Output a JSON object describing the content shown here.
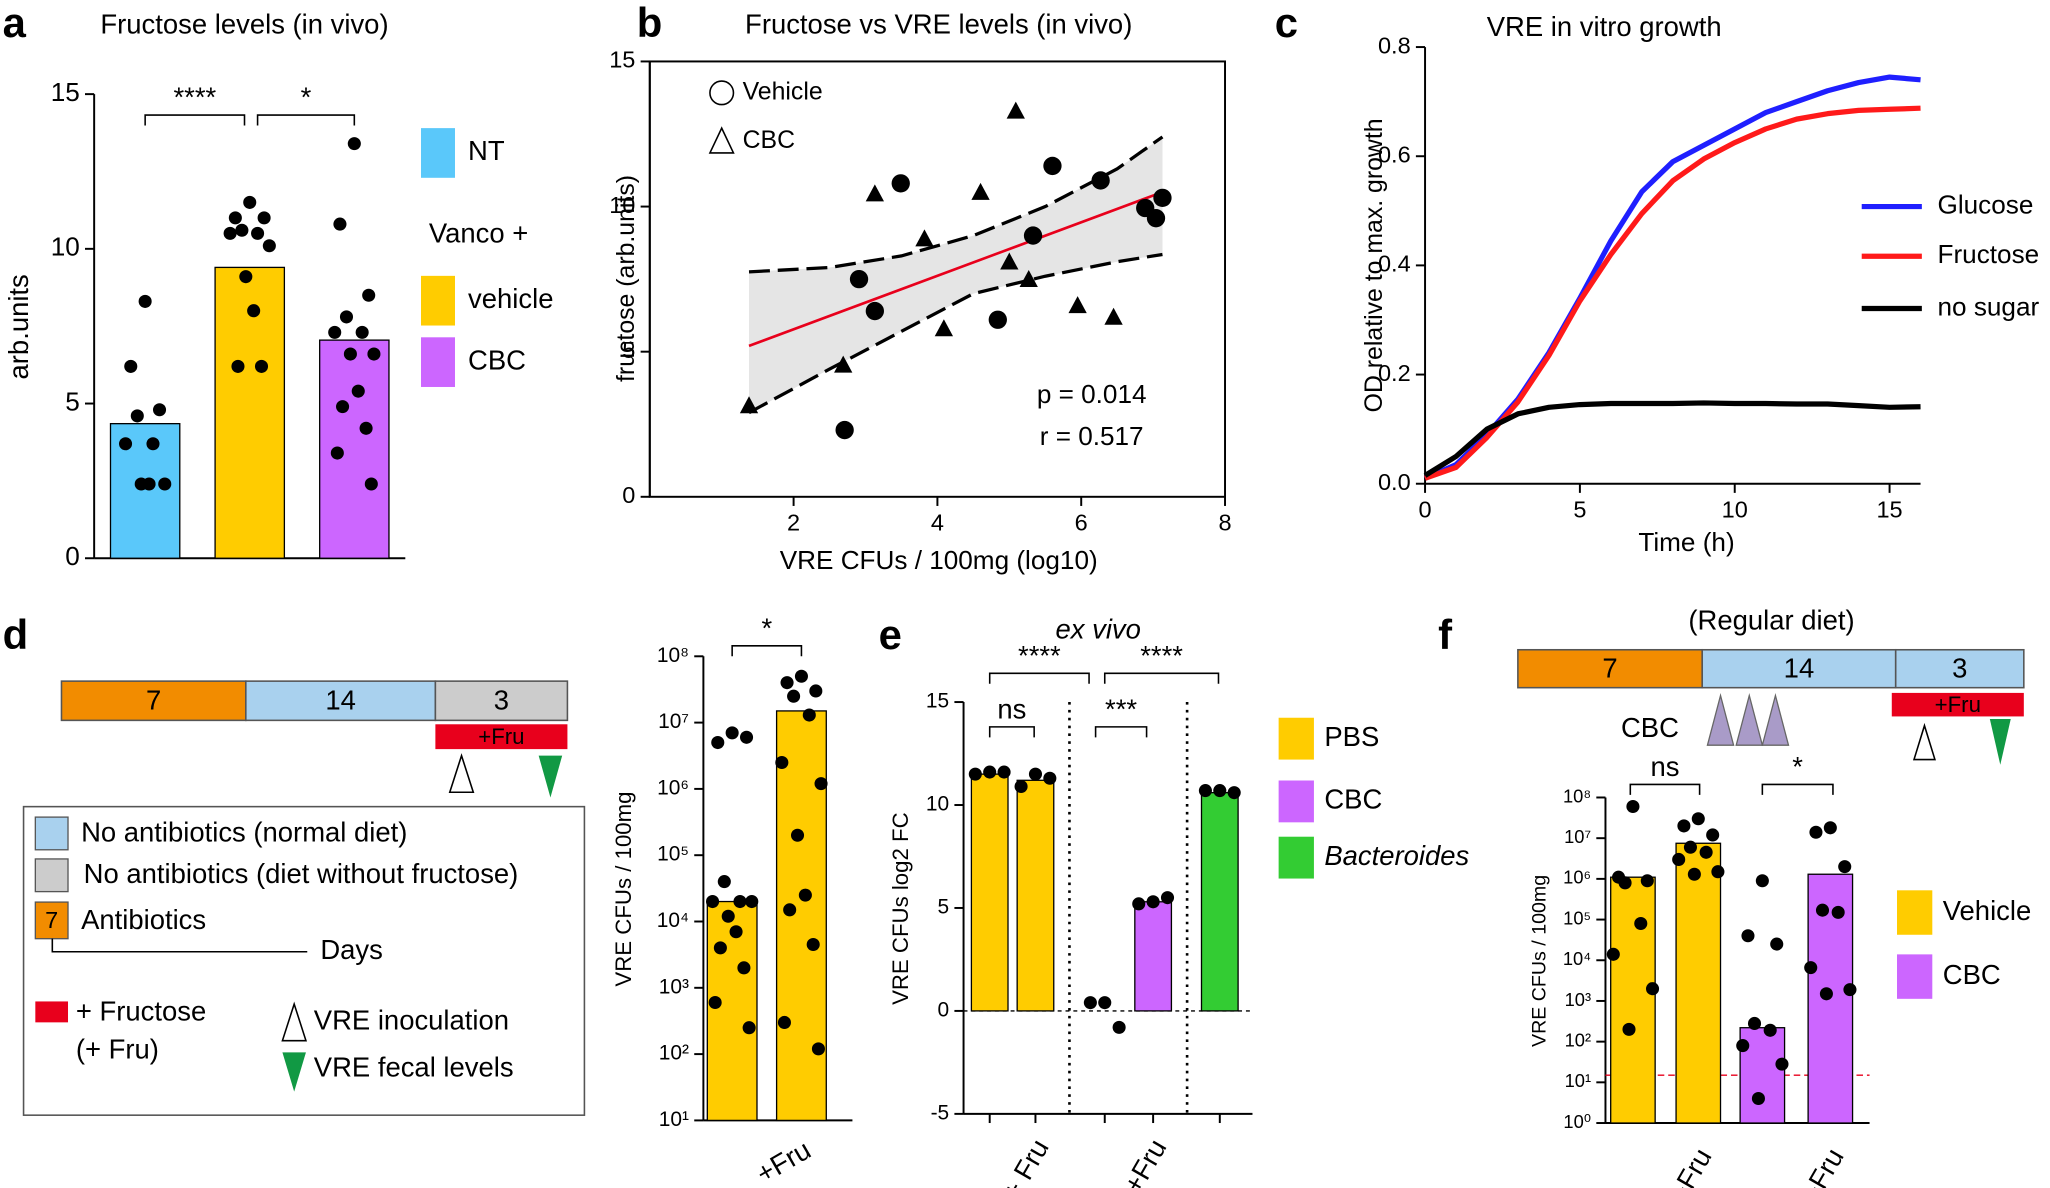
{
  "chart_data": [
    {
      "panel": "a",
      "type": "bar",
      "title": "Fructose levels (in vivo)",
      "ylabel": "arb.units",
      "ylim": [
        0,
        15
      ],
      "yticks": [
        0,
        5,
        10,
        15
      ],
      "categories": [
        null,
        null,
        null
      ],
      "values": [
        4.35,
        9.4,
        7.05
      ],
      "colors": [
        "#5ac8fa",
        "#ffcc00",
        "#cc66ff"
      ],
      "points": [
        [
          8.3,
          6.2,
          4.8,
          4.6,
          3.7,
          3.7,
          2.4,
          2.4,
          2.4
        ],
        [
          11.5,
          11.0,
          11.0,
          10.6,
          10.5,
          10.5,
          10.1,
          9.1,
          8.0,
          6.2,
          6.2
        ],
        [
          13.4,
          10.8,
          8.5,
          7.8,
          7.3,
          7.3,
          6.6,
          6.6,
          5.4,
          4.9,
          4.2,
          3.4,
          2.4
        ]
      ],
      "significance": [
        "****",
        "*"
      ],
      "legend_title": "Vanco +",
      "legend": [
        {
          "name": "NT",
          "color": "#5ac8fa"
        },
        {
          "name": "vehicle",
          "color": "#ffcc00"
        },
        {
          "name": "CBC",
          "color": "#cc66ff"
        }
      ]
    },
    {
      "panel": "b",
      "type": "scatter",
      "title": "Fructose vs VRE levels (in vivo)",
      "xlabel": "VRE CFUs / 100mg (log10)",
      "ylabel": "fructose (arb.units)",
      "xlim": [
        0,
        8
      ],
      "xticks": [
        2,
        4,
        6,
        8
      ],
      "ylim": [
        0,
        15
      ],
      "yticks": [
        0,
        5,
        10,
        15
      ],
      "series": [
        {
          "name": "Vehicle",
          "marker": "circle",
          "color": "#000000",
          "x": [
            2.91,
            3.13,
            3.49,
            2.71,
            4.84,
            5.6,
            5.33,
            6.27,
            6.89,
            7.04,
            7.13
          ],
          "values": [
            7.5,
            6.4,
            10.8,
            2.3,
            6.1,
            11.4,
            9.0,
            10.9,
            9.95,
            9.6,
            10.3
          ]
        },
        {
          "name": "CBC",
          "marker": "triangle",
          "color": "#000000",
          "x": [
            1.38,
            2.69,
            3.13,
            3.82,
            4.09,
            4.6,
            5.09,
            5.0,
            5.27,
            5.95,
            6.45
          ],
          "values": [
            3.15,
            4.55,
            10.45,
            8.9,
            5.8,
            10.5,
            13.3,
            8.1,
            7.5,
            6.6,
            6.2
          ]
        }
      ],
      "fit": {
        "color": "#e8001c",
        "x": [
          1.38,
          7.13
        ],
        "values": [
          5.2,
          10.5
        ]
      },
      "ci": {
        "x": [
          1.38,
          2.5,
          3.5,
          4.5,
          5.5,
          6.5,
          7.13
        ],
        "upper": [
          7.75,
          7.9,
          8.3,
          9.0,
          10.0,
          11.3,
          12.4
        ],
        "lower": [
          2.9,
          4.4,
          5.7,
          7.0,
          7.6,
          8.1,
          8.35
        ]
      },
      "annotations": [
        "p = 0.014",
        "r = 0.517"
      ]
    },
    {
      "panel": "c",
      "type": "line",
      "title": "VRE in vitro growth",
      "xlabel": "Time (h)",
      "ylabel": "OD relative to max. growth",
      "x": [
        0,
        1,
        2,
        3,
        4,
        5,
        6,
        7,
        8,
        9,
        10,
        11,
        12,
        13,
        14,
        15,
        16
      ],
      "xlim": [
        0,
        16
      ],
      "xticks": [
        0,
        5,
        10,
        15
      ],
      "ylim": [
        0,
        0.8
      ],
      "yticks": [
        {
          "value": 0,
          "label": "0.0"
        },
        0.2,
        0.4,
        0.6,
        0.8
      ],
      "series": [
        {
          "name": "Glucose",
          "color": "#1f1fff",
          "values": [
            0.01,
            0.035,
            0.09,
            0.155,
            0.24,
            0.34,
            0.445,
            0.535,
            0.59,
            0.62,
            0.65,
            0.68,
            0.7,
            0.72,
            0.735,
            0.745,
            0.74
          ]
        },
        {
          "name": "Fructose",
          "color": "#ff1a1a",
          "values": [
            0.01,
            0.03,
            0.085,
            0.15,
            0.235,
            0.335,
            0.42,
            0.495,
            0.555,
            0.595,
            0.625,
            0.65,
            0.668,
            0.678,
            0.684,
            0.686,
            0.688
          ]
        },
        {
          "name": "no sugar",
          "color": "#000000",
          "values": [
            0.015,
            0.05,
            0.1,
            0.128,
            0.14,
            0.145,
            0.147,
            0.147,
            0.147,
            0.148,
            0.147,
            0.147,
            0.146,
            0.146,
            0.143,
            0.14,
            0.141
          ]
        }
      ]
    },
    {
      "panel": "d",
      "type": "bar",
      "log_y": true,
      "ylabel": "VRE CFUs / 100mg",
      "ylim": [
        10,
        100000000
      ],
      "yticks": [
        {
          "value": 10,
          "label": "10¹"
        },
        {
          "value": 100,
          "label": "10²"
        },
        {
          "value": 1000,
          "label": "10³"
        },
        {
          "value": 10000,
          "label": "10⁴"
        },
        {
          "value": 100000,
          "label": "10⁵"
        },
        {
          "value": 1000000,
          "label": "10⁶"
        },
        {
          "value": 10000000,
          "label": "10⁷"
        },
        {
          "value": 100000000,
          "label": "10⁸"
        }
      ],
      "categories": [
        null,
        "+Fru"
      ],
      "values": [
        20000,
        15000000
      ],
      "colors": [
        "#ffcc00",
        "#ffcc00"
      ],
      "points": [
        [
          7000000,
          5000000,
          6000000,
          40000,
          20000,
          20000,
          20000,
          12000,
          7000,
          4000,
          2000,
          600,
          250
        ],
        [
          50000000,
          40000000,
          30000000,
          25000000,
          13000000,
          2500000,
          1200000,
          200000,
          25000,
          15000,
          4500,
          300,
          120
        ]
      ],
      "significance": [
        "*"
      ],
      "timeline": {
        "segments": [
          {
            "label": "7",
            "color": "#f28c00"
          },
          {
            "label": "14",
            "color": "#a9d1ee"
          },
          {
            "label": "3",
            "color": "#cccccc"
          }
        ],
        "fructose": {
          "label": "+Fru",
          "color": "#e8001c"
        }
      },
      "key": [
        "No antibiotics (normal diet)",
        "No antibiotics (diet without fructose)",
        "Antibiotics",
        "Days",
        "+ Fructose",
        "(+ Fru)",
        "VRE inoculation",
        "VRE fecal levels"
      ]
    },
    {
      "panel": "e",
      "type": "bar",
      "title": "ex vivo",
      "ylabel": "VRE CFUs log2 FC",
      "ylim": [
        -5,
        15
      ],
      "yticks": [
        -5,
        0,
        5,
        10,
        15
      ],
      "zero_line": true,
      "categories": [
        null,
        "+ Fru",
        null,
        "+Fru",
        null
      ],
      "values": [
        11.5,
        11.2,
        0,
        5.3,
        10.6
      ],
      "colors": [
        "#ffcc00",
        "#ffcc00",
        "#cc66ff",
        "#cc66ff",
        "#33cc33"
      ],
      "points": [
        [
          11.6,
          11.5,
          11.6
        ],
        [
          11.5,
          10.9,
          11.3
        ],
        [
          0.4,
          0.4,
          -0.8
        ],
        [
          5.3,
          5.2,
          5.5
        ],
        [
          10.7,
          10.7,
          10.6
        ]
      ],
      "significance": [
        "****",
        "****",
        "ns",
        "***"
      ],
      "legend": [
        {
          "name": "PBS",
          "color": "#ffcc00"
        },
        {
          "name": "CBC",
          "color": "#cc66ff"
        },
        {
          "name": "Bacteroides",
          "color": "#33cc33",
          "italic": true
        }
      ]
    },
    {
      "panel": "f",
      "type": "bar",
      "log_y": true,
      "ylabel": "VRE CFUs / 100mg",
      "ylim": [
        1,
        100000000
      ],
      "yticks": [
        {
          "value": 1,
          "label": "10⁰"
        },
        {
          "value": 10,
          "label": "10¹"
        },
        {
          "value": 100,
          "label": "10²"
        },
        {
          "value": 1000,
          "label": "10³"
        },
        {
          "value": 10000,
          "label": "10⁴"
        },
        {
          "value": 100000,
          "label": "10⁵"
        },
        {
          "value": 1000000,
          "label": "10⁶"
        },
        {
          "value": 10000000,
          "label": "10⁷"
        },
        {
          "value": 100000000,
          "label": "10⁸"
        }
      ],
      "categories": [
        null,
        "+Fru",
        null,
        "+Fru"
      ],
      "values": [
        1100000,
        7500000,
        220,
        1300000
      ],
      "colors": [
        "#ffcc00",
        "#ffcc00",
        "#cc66ff",
        "#cc66ff"
      ],
      "points": [
        [
          60000000,
          1100000,
          900000,
          800000,
          80000,
          14000,
          2000,
          200
        ],
        [
          30000000,
          20000000,
          12000000,
          6000000,
          4500000,
          3000000,
          1500000,
          1300000
        ],
        [
          900000,
          40000,
          25000,
          280,
          190,
          80,
          28,
          4
        ],
        [
          18000000,
          14000000,
          2000000,
          170000,
          150000,
          6600,
          1900,
          1500
        ]
      ],
      "significance": [
        "ns",
        "*"
      ],
      "reference_line": {
        "value": 15,
        "color": "#e8001c"
      },
      "legend": [
        {
          "name": "Vehicle",
          "color": "#ffcc00"
        },
        {
          "name": "CBC",
          "color": "#cc66ff"
        }
      ],
      "timeline": {
        "title": "(Regular diet)",
        "segments": [
          {
            "label": "7",
            "color": "#f28c00"
          },
          {
            "label": "14",
            "color": "#a9d1ee"
          },
          {
            "label": "3",
            "color": "#a9d1ee"
          }
        ],
        "treatment": {
          "label": "CBC",
          "color": "#a99bc8"
        },
        "fructose": {
          "label": "+Fru",
          "color": "#e8001c"
        }
      }
    }
  ]
}
